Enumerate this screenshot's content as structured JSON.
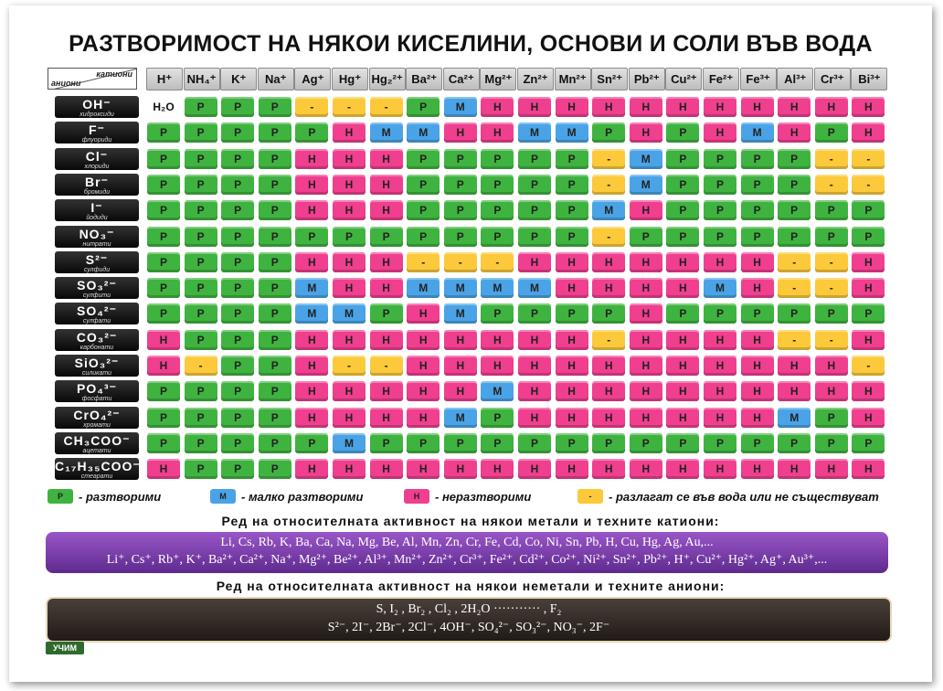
{
  "title": "РАЗТВОРИМОСТ НА НЯКОИ КИСЕЛИНИ, ОСНОВИ И СОЛИ ВЪВ ВОДА",
  "corner": {
    "cations": "катиони",
    "anions": "аниони"
  },
  "cations": [
    "H⁺",
    "NH₄⁺",
    "K⁺",
    "Na⁺",
    "Ag⁺",
    "Hg⁺",
    "Hg₂²⁺",
    "Ba²⁺",
    "Ca²⁺",
    "Mg²⁺",
    "Zn²⁺",
    "Mn²⁺",
    "Sn²⁺",
    "Pb²⁺",
    "Cu²⁺",
    "Fe²⁺",
    "Fe³⁺",
    "Al³⁺",
    "Cr³⁺",
    "Bi³⁺"
  ],
  "anions": [
    {
      "formula": "OH⁻",
      "name": "хидроксиди"
    },
    {
      "formula": "F⁻",
      "name": "флуориди"
    },
    {
      "formula": "Cl⁻",
      "name": "хлориди"
    },
    {
      "formula": "Br⁻",
      "name": "бромиди"
    },
    {
      "formula": "I⁻",
      "name": "йодиди"
    },
    {
      "formula": "NO₃⁻",
      "name": "нитрати"
    },
    {
      "formula": "S²⁻",
      "name": "сулфиди"
    },
    {
      "formula": "SO₃²⁻",
      "name": "сулфити"
    },
    {
      "formula": "SO₄²⁻",
      "name": "сулфати"
    },
    {
      "formula": "CO₃²⁻",
      "name": "карбонати"
    },
    {
      "formula": "SiO₃²⁻",
      "name": "силикати"
    },
    {
      "formula": "PO₄³⁻",
      "name": "фосфати"
    },
    {
      "formula": "CrO₄²⁻",
      "name": "хромати"
    },
    {
      "formula": "CH₃COO⁻",
      "name": "ацетати"
    },
    {
      "formula": "C₁₇H₃₅COO⁻",
      "name": "стеарати"
    }
  ],
  "water_label": "H₂O",
  "table": [
    [
      "T",
      "P",
      "P",
      "P",
      "D",
      "D",
      "D",
      "P",
      "M",
      "H",
      "H",
      "H",
      "H",
      "H",
      "H",
      "H",
      "H",
      "H",
      "H",
      "H"
    ],
    [
      "P",
      "P",
      "P",
      "P",
      "P",
      "H",
      "M",
      "M",
      "H",
      "H",
      "M",
      "M",
      "P",
      "H",
      "P",
      "H",
      "M",
      "H",
      "P",
      "H"
    ],
    [
      "P",
      "P",
      "P",
      "P",
      "H",
      "H",
      "H",
      "P",
      "P",
      "P",
      "P",
      "P",
      "D",
      "M",
      "P",
      "P",
      "P",
      "P",
      "D",
      "D"
    ],
    [
      "P",
      "P",
      "P",
      "P",
      "H",
      "H",
      "H",
      "P",
      "P",
      "P",
      "P",
      "P",
      "D",
      "M",
      "P",
      "P",
      "P",
      "P",
      "D",
      "D"
    ],
    [
      "P",
      "P",
      "P",
      "P",
      "H",
      "H",
      "H",
      "P",
      "P",
      "P",
      "P",
      "P",
      "M",
      "H",
      "P",
      "P",
      "P",
      "P",
      "P",
      "P"
    ],
    [
      "P",
      "P",
      "P",
      "P",
      "P",
      "P",
      "P",
      "P",
      "P",
      "P",
      "P",
      "P",
      "D",
      "P",
      "P",
      "P",
      "P",
      "P",
      "P",
      "P"
    ],
    [
      "P",
      "P",
      "P",
      "P",
      "H",
      "H",
      "H",
      "D",
      "D",
      "D",
      "H",
      "H",
      "H",
      "H",
      "H",
      "H",
      "H",
      "D",
      "D",
      "H"
    ],
    [
      "P",
      "P",
      "P",
      "P",
      "M",
      "H",
      "H",
      "M",
      "M",
      "M",
      "M",
      "H",
      "H",
      "H",
      "H",
      "M",
      "H",
      "D",
      "D",
      "H"
    ],
    [
      "P",
      "P",
      "P",
      "P",
      "M",
      "M",
      "P",
      "H",
      "M",
      "P",
      "P",
      "P",
      "P",
      "H",
      "P",
      "P",
      "P",
      "P",
      "P",
      "P"
    ],
    [
      "H",
      "P",
      "P",
      "P",
      "H",
      "H",
      "H",
      "H",
      "H",
      "H",
      "H",
      "H",
      "D",
      "H",
      "H",
      "H",
      "H",
      "D",
      "D",
      "H"
    ],
    [
      "H",
      "D",
      "P",
      "P",
      "H",
      "D",
      "D",
      "H",
      "H",
      "H",
      "H",
      "H",
      "H",
      "H",
      "H",
      "H",
      "H",
      "H",
      "H",
      "D"
    ],
    [
      "P",
      "P",
      "P",
      "P",
      "H",
      "H",
      "H",
      "H",
      "H",
      "M",
      "H",
      "H",
      "H",
      "H",
      "H",
      "H",
      "H",
      "H",
      "H",
      "H"
    ],
    [
      "P",
      "P",
      "P",
      "P",
      "H",
      "H",
      "H",
      "H",
      "M",
      "P",
      "H",
      "H",
      "H",
      "H",
      "H",
      "H",
      "H",
      "M",
      "P",
      "H"
    ],
    [
      "P",
      "P",
      "P",
      "P",
      "P",
      "M",
      "P",
      "P",
      "P",
      "P",
      "P",
      "P",
      "P",
      "P",
      "P",
      "P",
      "P",
      "P",
      "P",
      "P"
    ],
    [
      "H",
      "P",
      "P",
      "P",
      "H",
      "H",
      "H",
      "H",
      "H",
      "H",
      "H",
      "H",
      "H",
      "H",
      "H",
      "H",
      "H",
      "H",
      "H",
      "H"
    ]
  ],
  "symbols": {
    "P": "Р",
    "M": "М",
    "H": "Н",
    "D": "-"
  },
  "colors": {
    "P": "#3fb33f",
    "M": "#4aa3e6",
    "H": "#ef3f8e",
    "D": "#fbc93a"
  },
  "legend": [
    {
      "symbol": "Р",
      "text": "- разтворими",
      "color": "#3fb33f"
    },
    {
      "symbol": "М",
      "text": "- малко разтворими",
      "color": "#4aa3e6"
    },
    {
      "symbol": "Н",
      "text": "- неразтворими",
      "color": "#ef3f8e"
    },
    {
      "symbol": "-",
      "text": "- разлагат се във вода или не съществуват",
      "color": "#fbc93a"
    }
  ],
  "metals_title": "Ред на относителната активност на някои метали и техните катиони:",
  "metals_line1": "Li, Cs, Rb, K, Ba, Ca, Na, Mg, Be, Al, Mn, Zn, Cr, Fe, Cd, Co, Ni, Sn, Pb, H, Cu, Hg, Ag, Au,...",
  "metals_line2": "Li⁺, Cs⁺, Rb⁺, K⁺, Ba²⁺, Ca²⁺, Na⁺, Mg²⁺, Be²⁺, Al³⁺, Mn²⁺, Zn²⁺, Cr³⁺, Fe²⁺, Cd²⁺, Co²⁺, Ni²⁺, Sn²⁺, Pb²⁺, H⁺, Cu²⁺, Hg²⁺, Ag⁺, Au³⁺,...",
  "nonmetals_title": "Ред на относителната активност на някои неметали и техните аниони:",
  "nonmetals_line1": "S, I₂ , Br₂ , Cl₂ , 2H₂O ··········· , F₂",
  "nonmetals_line2": "S²⁻, 2I⁻, 2Br⁻, 2Cl⁻, 4OH⁻, SO₄²⁻, SO₃²⁻, NO₃⁻, 2F⁻",
  "logo": "УЧИМ"
}
